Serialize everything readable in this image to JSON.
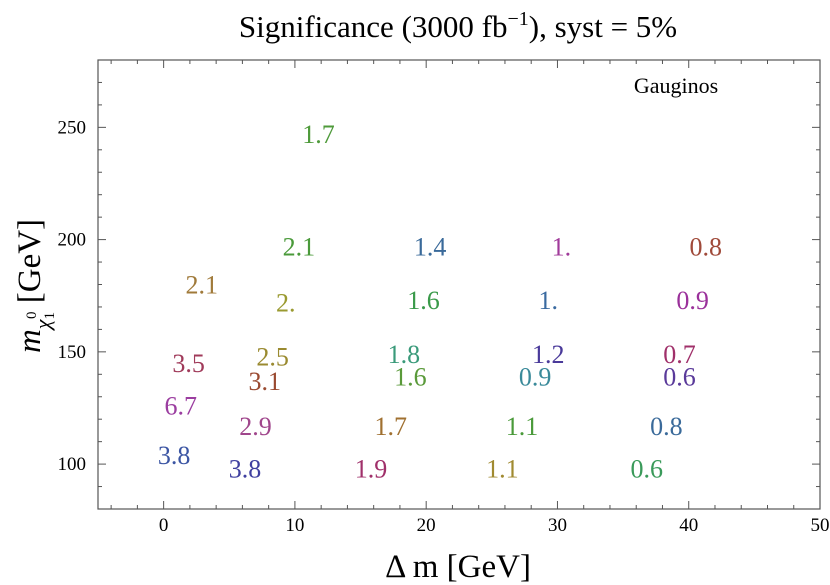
{
  "chart_data": {
    "type": "scatter",
    "title_main": "Significance (3000 fb",
    "title_sup": "−1",
    "title_tail": "), syst = 5%",
    "xlabel_main": "Δ m",
    "xlabel_unit": " [GeV]",
    "ylabel_main": "m",
    "ylabel_sub": "χ",
    "ylabel_subsub": "1",
    "ylabel_sup": "0",
    "ylabel_unit": " [GeV]",
    "annotation": "Gauginos",
    "xlim": [
      -5,
      50
    ],
    "ylim": [
      80,
      280
    ],
    "xticks": [
      0,
      10,
      20,
      30,
      40,
      50
    ],
    "yticks": [
      100,
      150,
      200,
      250
    ],
    "points": [
      {
        "x": 11.8,
        "y": 247,
        "label": "1.7",
        "color": "#4e9a3a"
      },
      {
        "x": 0.8,
        "y": 104,
        "label": "3.8",
        "color": "#3b55a3"
      },
      {
        "x": 6.2,
        "y": 98,
        "label": "3.8",
        "color": "#4040a0"
      },
      {
        "x": 1.3,
        "y": 126,
        "label": "6.7",
        "color": "#9b3da0"
      },
      {
        "x": 7.0,
        "y": 117,
        "label": "2.9",
        "color": "#a0468c"
      },
      {
        "x": 1.9,
        "y": 145,
        "label": "3.5",
        "color": "#a03a5a"
      },
      {
        "x": 7.7,
        "y": 137,
        "label": "3.1",
        "color": "#9a4a30"
      },
      {
        "x": 8.3,
        "y": 148,
        "label": "2.5",
        "color": "#9a8a30"
      },
      {
        "x": 2.9,
        "y": 180,
        "label": "2.1",
        "color": "#a07a3a"
      },
      {
        "x": 9.3,
        "y": 172,
        "label": "2.",
        "color": "#9a9a30"
      },
      {
        "x": 10.3,
        "y": 197,
        "label": "2.1",
        "color": "#4a9a3a"
      },
      {
        "x": 15.8,
        "y": 98,
        "label": "1.9",
        "color": "#a0306a"
      },
      {
        "x": 17.3,
        "y": 117,
        "label": "1.7",
        "color": "#a07030"
      },
      {
        "x": 18.8,
        "y": 139,
        "label": "1.6",
        "color": "#5a9a3a"
      },
      {
        "x": 18.3,
        "y": 149,
        "label": "1.8",
        "color": "#3a9a7a"
      },
      {
        "x": 19.8,
        "y": 173,
        "label": "1.6",
        "color": "#3a9a4a"
      },
      {
        "x": 20.3,
        "y": 197,
        "label": "1.4",
        "color": "#3a6a9a"
      },
      {
        "x": 25.8,
        "y": 98,
        "label": "1.1",
        "color": "#a08a30"
      },
      {
        "x": 27.3,
        "y": 117,
        "label": "1.1",
        "color": "#4a9a3a"
      },
      {
        "x": 28.3,
        "y": 139,
        "label": "0.9",
        "color": "#3a8a9a"
      },
      {
        "x": 29.3,
        "y": 149,
        "label": "1.2",
        "color": "#4a3a9a"
      },
      {
        "x": 29.3,
        "y": 173,
        "label": "1.",
        "color": "#3a6aa0"
      },
      {
        "x": 30.3,
        "y": 197,
        "label": "1.",
        "color": "#a03a9a"
      },
      {
        "x": 36.8,
        "y": 98,
        "label": "0.6",
        "color": "#3a9a5a"
      },
      {
        "x": 38.3,
        "y": 117,
        "label": "0.8",
        "color": "#3a6a9a"
      },
      {
        "x": 39.3,
        "y": 139,
        "label": "0.6",
        "color": "#5a3a9a"
      },
      {
        "x": 39.3,
        "y": 149,
        "label": "0.7",
        "color": "#a0306a"
      },
      {
        "x": 40.3,
        "y": 173,
        "label": "0.9",
        "color": "#9a309a"
      },
      {
        "x": 41.3,
        "y": 197,
        "label": "0.8",
        "color": "#a04a3a"
      }
    ]
  }
}
